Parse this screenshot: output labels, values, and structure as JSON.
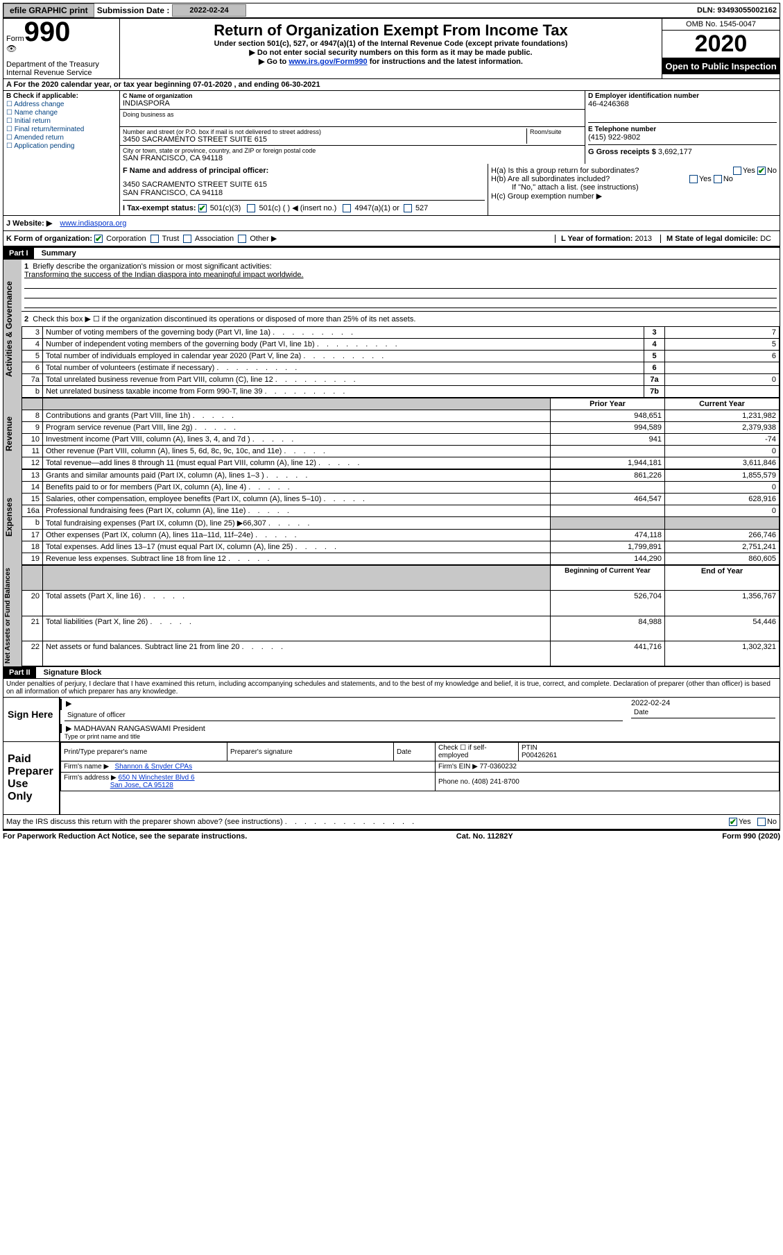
{
  "topbar": {
    "efile": "efile GRAPHIC print",
    "sub_label": "Submission Date :",
    "sub_date": "2022-02-24",
    "dln": "DLN: 93493055002162"
  },
  "header": {
    "form_word": "Form",
    "form_num": "990",
    "dept": "Department of the Treasury\nInternal Revenue Service",
    "title": "Return of Organization Exempt From Income Tax",
    "sub1": "Under section 501(c), 527, or 4947(a)(1) of the Internal Revenue Code (except private foundations)",
    "sub2": "▶ Do not enter social security numbers on this form as it may be made public.",
    "sub3_pre": "▶ Go to ",
    "sub3_link": "www.irs.gov/Form990",
    "sub3_post": " for instructions and the latest information.",
    "omb": "OMB No. 1545-0047",
    "year": "2020",
    "open": "Open to Public Inspection"
  },
  "line_a": "A For the 2020 calendar year, or tax year beginning 07-01-2020    , and ending 06-30-2021",
  "box_b": {
    "label": "B Check if applicable:",
    "items": [
      "Address change",
      "Name change",
      "Initial return",
      "Final return/terminated",
      "Amended return",
      "Application pending"
    ]
  },
  "box_c": {
    "name_lbl": "C Name of organization",
    "name": "INDIASPORA",
    "dba_lbl": "Doing business as",
    "addr_lbl": "Number and street (or P.O. box if mail is not delivered to street address)",
    "room_lbl": "Room/suite",
    "addr": "3450 SACRAMENTO STREET SUITE 615",
    "city_lbl": "City or town, state or province, country, and ZIP or foreign postal code",
    "city": "SAN FRANCISCO, CA  94118"
  },
  "box_d": {
    "lbl": "D Employer identification number",
    "val": "46-4246368"
  },
  "box_e": {
    "lbl": "E Telephone number",
    "val": "(415) 922-9802"
  },
  "box_g": {
    "lbl": "G Gross receipts $",
    "val": "3,692,177"
  },
  "box_f": {
    "lbl": "F Name and address of principal officer:",
    "addr1": "3450 SACRAMENTO STREET SUITE 615",
    "addr2": "SAN FRANCISCO, CA  94118"
  },
  "box_h": {
    "a": "H(a)  Is this a group return for subordinates?",
    "b": "H(b)  Are all subordinates included?",
    "b_note": "If \"No,\" attach a list. (see instructions)",
    "c": "H(c)  Group exemption number ▶",
    "yes": "Yes",
    "no": "No"
  },
  "box_i": {
    "lbl": "I  Tax-exempt status:",
    "o1": "501(c)(3)",
    "o2": "501(c) (  ) ◀ (insert no.)",
    "o3": "4947(a)(1) or",
    "o4": "527"
  },
  "box_j": {
    "lbl": "J  Website: ▶",
    "val": "www.indiaspora.org"
  },
  "box_k": {
    "lbl": "K Form of organization:",
    "o1": "Corporation",
    "o2": "Trust",
    "o3": "Association",
    "o4": "Other ▶"
  },
  "box_l": {
    "lbl": "L Year of formation:",
    "val": "2013"
  },
  "box_m": {
    "lbl": "M State of legal domicile:",
    "val": "DC"
  },
  "part1": {
    "hdr": "Part I",
    "title": "Summary"
  },
  "summary": {
    "line1_lbl": "Briefly describe the organization's mission or most significant activities:",
    "line1_val": "Transforming the success of the Indian diaspora into meaningful impact worldwide.",
    "line2": "Check this box ▶ ☐  if the organization discontinued its operations or disposed of more than 25% of its net assets.",
    "rows_top": [
      {
        "n": "3",
        "t": "Number of voting members of the governing body (Part VI, line 1a)",
        "c": "3",
        "v": "7"
      },
      {
        "n": "4",
        "t": "Number of independent voting members of the governing body (Part VI, line 1b)",
        "c": "4",
        "v": "5"
      },
      {
        "n": "5",
        "t": "Total number of individuals employed in calendar year 2020 (Part V, line 2a)",
        "c": "5",
        "v": "6"
      },
      {
        "n": "6",
        "t": "Total number of volunteers (estimate if necessary)",
        "c": "6",
        "v": ""
      },
      {
        "n": "7a",
        "t": "Total unrelated business revenue from Part VIII, column (C), line 12",
        "c": "7a",
        "v": "0"
      },
      {
        "n": "b",
        "t": "Net unrelated business taxable income from Form 990-T, line 39",
        "c": "7b",
        "v": ""
      }
    ],
    "col_hdr_prior": "Prior Year",
    "col_hdr_curr": "Current Year",
    "revenue": [
      {
        "n": "8",
        "t": "Contributions and grants (Part VIII, line 1h)",
        "p": "948,651",
        "c": "1,231,982"
      },
      {
        "n": "9",
        "t": "Program service revenue (Part VIII, line 2g)",
        "p": "994,589",
        "c": "2,379,938"
      },
      {
        "n": "10",
        "t": "Investment income (Part VIII, column (A), lines 3, 4, and 7d )",
        "p": "941",
        "c": "-74"
      },
      {
        "n": "11",
        "t": "Other revenue (Part VIII, column (A), lines 5, 6d, 8c, 9c, 10c, and 11e)",
        "p": "",
        "c": "0"
      },
      {
        "n": "12",
        "t": "Total revenue—add lines 8 through 11 (must equal Part VIII, column (A), line 12)",
        "p": "1,944,181",
        "c": "3,611,846"
      }
    ],
    "expenses": [
      {
        "n": "13",
        "t": "Grants and similar amounts paid (Part IX, column (A), lines 1–3 )",
        "p": "861,226",
        "c": "1,855,579"
      },
      {
        "n": "14",
        "t": "Benefits paid to or for members (Part IX, column (A), line 4)",
        "p": "",
        "c": "0"
      },
      {
        "n": "15",
        "t": "Salaries, other compensation, employee benefits (Part IX, column (A), lines 5–10)",
        "p": "464,547",
        "c": "628,916"
      },
      {
        "n": "16a",
        "t": "Professional fundraising fees (Part IX, column (A), line 11e)",
        "p": "",
        "c": "0"
      },
      {
        "n": "b",
        "t": "Total fundraising expenses (Part IX, column (D), line 25) ▶66,307",
        "p": "GRAY",
        "c": "GRAY"
      },
      {
        "n": "17",
        "t": "Other expenses (Part IX, column (A), lines 11a–11d, 11f–24e)",
        "p": "474,118",
        "c": "266,746"
      },
      {
        "n": "18",
        "t": "Total expenses. Add lines 13–17 (must equal Part IX, column (A), line 25)",
        "p": "1,799,891",
        "c": "2,751,241"
      },
      {
        "n": "19",
        "t": "Revenue less expenses. Subtract line 18 from line 12",
        "p": "144,290",
        "c": "860,605"
      }
    ],
    "col_hdr_begin": "Beginning of Current Year",
    "col_hdr_end": "End of Year",
    "netassets": [
      {
        "n": "20",
        "t": "Total assets (Part X, line 16)",
        "p": "526,704",
        "c": "1,356,767"
      },
      {
        "n": "21",
        "t": "Total liabilities (Part X, line 26)",
        "p": "84,988",
        "c": "54,446"
      },
      {
        "n": "22",
        "t": "Net assets or fund balances. Subtract line 21 from line 20",
        "p": "441,716",
        "c": "1,302,321"
      }
    ],
    "vlabel1": "Activities & Governance",
    "vlabel2": "Revenue",
    "vlabel3": "Expenses",
    "vlabel4": "Net Assets or Fund Balances"
  },
  "part2": {
    "hdr": "Part II",
    "title": "Signature Block"
  },
  "sig": {
    "penalty": "Under penalties of perjury, I declare that I have examined this return, including accompanying schedules and statements, and to the best of my knowledge and belief, it is true, correct, and complete. Declaration of preparer (other than officer) is based on all information of which preparer has any knowledge.",
    "sign_here": "Sign Here",
    "sig_officer": "Signature of officer",
    "date": "Date",
    "date_val": "2022-02-24",
    "name": "MADHAVAN RANGASWAMI President",
    "name_lbl": "Type or print name and title",
    "paid": "Paid Preparer Use Only",
    "prep_name_lbl": "Print/Type preparer's name",
    "prep_sig_lbl": "Preparer's signature",
    "prep_date_lbl": "Date",
    "self_emp": "Check ☐ if self-employed",
    "ptin_lbl": "PTIN",
    "ptin": "P00426261",
    "firm_name_lbl": "Firm's name    ▶",
    "firm_name": "Shannon & Snyder CPAs",
    "firm_ein_lbl": "Firm's EIN ▶",
    "firm_ein": "77-0360232",
    "firm_addr_lbl": "Firm's address ▶",
    "firm_addr1": "650 N Winchester Blvd 6",
    "firm_addr2": "San Jose, CA  95128",
    "phone_lbl": "Phone no.",
    "phone": "(408) 241-8700",
    "discuss": "May the IRS discuss this return with the preparer shown above? (see instructions)",
    "yes": "Yes",
    "no": "No"
  },
  "footer": {
    "left": "For Paperwork Reduction Act Notice, see the separate instructions.",
    "mid": "Cat. No. 11282Y",
    "right": "Form 990 (2020)"
  }
}
